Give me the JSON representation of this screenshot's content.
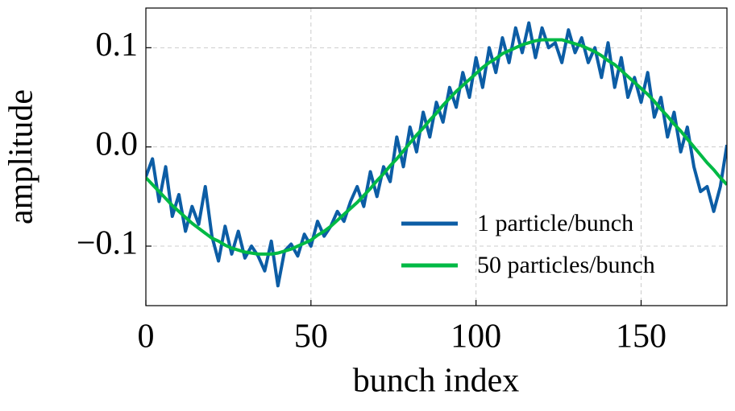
{
  "chart_data": {
    "type": "line",
    "xlabel": "bunch index",
    "ylabel": "amplitude",
    "x": [
      0,
      2,
      4,
      6,
      8,
      10,
      12,
      14,
      16,
      18,
      20,
      22,
      24,
      26,
      28,
      30,
      32,
      34,
      36,
      38,
      40,
      42,
      44,
      46,
      48,
      50,
      52,
      54,
      56,
      58,
      60,
      62,
      64,
      66,
      68,
      70,
      72,
      74,
      76,
      78,
      80,
      82,
      84,
      86,
      88,
      90,
      92,
      94,
      96,
      98,
      100,
      102,
      104,
      106,
      108,
      110,
      112,
      114,
      116,
      118,
      120,
      122,
      124,
      126,
      128,
      130,
      132,
      134,
      136,
      138,
      140,
      142,
      144,
      146,
      148,
      150,
      152,
      154,
      156,
      158,
      160,
      162,
      164,
      166,
      168,
      170,
      172,
      174,
      176
    ],
    "series": [
      {
        "name": "1 particle/bunch",
        "color": "#0c5da5",
        "values": [
          -0.03,
          -0.012,
          -0.055,
          -0.02,
          -0.07,
          -0.048,
          -0.085,
          -0.06,
          -0.078,
          -0.04,
          -0.09,
          -0.115,
          -0.08,
          -0.108,
          -0.085,
          -0.112,
          -0.1,
          -0.11,
          -0.125,
          -0.095,
          -0.14,
          -0.105,
          -0.098,
          -0.11,
          -0.088,
          -0.1,
          -0.075,
          -0.09,
          -0.08,
          -0.065,
          -0.075,
          -0.055,
          -0.04,
          -0.06,
          -0.025,
          -0.05,
          -0.02,
          -0.035,
          0.01,
          -0.02,
          0.02,
          -0.005,
          0.035,
          0.01,
          0.045,
          0.025,
          0.06,
          0.04,
          0.075,
          0.05,
          0.09,
          0.06,
          0.1,
          0.075,
          0.11,
          0.085,
          0.12,
          0.095,
          0.125,
          0.09,
          0.12,
          0.1,
          0.105,
          0.085,
          0.118,
          0.095,
          0.11,
          0.085,
          0.1,
          0.07,
          0.105,
          0.06,
          0.09,
          0.05,
          0.07,
          0.045,
          0.075,
          0.03,
          0.05,
          0.01,
          0.035,
          -0.005,
          0.02,
          -0.02,
          -0.045,
          -0.04,
          -0.065,
          -0.04,
          0.002
        ]
      },
      {
        "name": "50 particles/bunch",
        "color": "#00b945",
        "values": [
          -0.031,
          -0.038,
          -0.045,
          -0.052,
          -0.059,
          -0.065,
          -0.071,
          -0.077,
          -0.082,
          -0.087,
          -0.092,
          -0.095,
          -0.099,
          -0.102,
          -0.104,
          -0.106,
          -0.107,
          -0.108,
          -0.108,
          -0.108,
          -0.107,
          -0.105,
          -0.103,
          -0.1,
          -0.097,
          -0.094,
          -0.089,
          -0.085,
          -0.08,
          -0.074,
          -0.068,
          -0.062,
          -0.056,
          -0.049,
          -0.042,
          -0.034,
          -0.027,
          -0.019,
          -0.012,
          -0.004,
          0.004,
          0.012,
          0.019,
          0.027,
          0.034,
          0.042,
          0.049,
          0.056,
          0.062,
          0.068,
          0.074,
          0.08,
          0.085,
          0.089,
          0.094,
          0.097,
          0.1,
          0.103,
          0.105,
          0.107,
          0.108,
          0.108,
          0.108,
          0.108,
          0.106,
          0.104,
          0.102,
          0.099,
          0.096,
          0.092,
          0.087,
          0.083,
          0.077,
          0.071,
          0.065,
          0.059,
          0.053,
          0.046,
          0.038,
          0.031,
          0.023,
          0.016,
          0.008,
          0.0,
          -0.008,
          -0.016,
          -0.023,
          -0.031,
          -0.038
        ]
      }
    ],
    "xlim": [
      0,
      176
    ],
    "ylim": [
      -0.16,
      0.14
    ],
    "xticks": [
      0,
      50,
      100,
      150
    ],
    "yticks": [
      {
        "value": -0.1,
        "label": "−0.1"
      },
      {
        "value": 0,
        "label": "0.0"
      },
      0.1
    ],
    "grid": true,
    "legend": "lower right"
  }
}
